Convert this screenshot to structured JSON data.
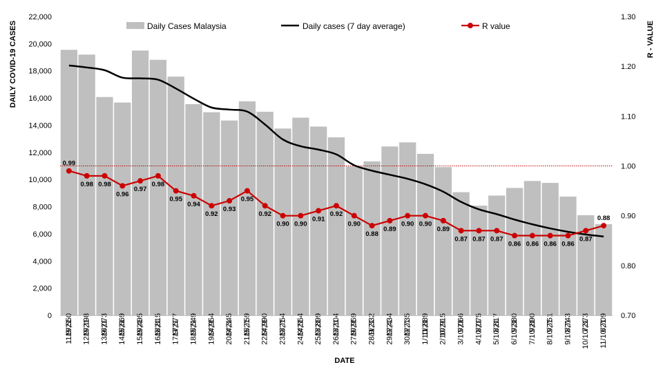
{
  "chart_data": {
    "type": "bar",
    "xlabel": "DATE",
    "ylabel": "DAILY COVID-19 CASES",
    "y2label": "R - VALUE",
    "ylim": [
      0,
      22000
    ],
    "y2lim": [
      0.7,
      1.3
    ],
    "yticks": [
      "0",
      "2,000",
      "4,000",
      "6,000",
      "8,000",
      "10,000",
      "12,000",
      "14,000",
      "16,000",
      "18,000",
      "20,000",
      "22,000"
    ],
    "y2ticks": [
      "0.70",
      "0.80",
      "0.90",
      "1.00",
      "1.10",
      "1.20",
      "1.30"
    ],
    "reference_line": 1.0,
    "legend_position": "top",
    "categories": [
      "11/9/21",
      "12/9/21",
      "13/9/21",
      "14/9/21",
      "15/9/21",
      "16/9/21",
      "17/9/21",
      "18/9/21",
      "19/9/21",
      "20/9/21",
      "21/9/21",
      "22/9/21",
      "23/9/21",
      "24/9/21",
      "25/9/21",
      "26/9/21",
      "27/9/21",
      "28/9/21",
      "29/9/21",
      "30/9/21",
      "1/10/21",
      "2/10/21",
      "3/10/21",
      "4/10/21",
      "5/10/21",
      "6/10/21",
      "7/10/21",
      "8/10/21",
      "9/10/21",
      "10/10/21",
      "11/10/21"
    ],
    "series": [
      {
        "name": "Daily Cases Malaysia",
        "type": "bar",
        "color": "#bfbfbf",
        "values": [
          19550,
          19198,
          16073,
          15669,
          19495,
          18815,
          17577,
          15549,
          14954,
          14345,
          15759,
          14990,
          13754,
          14554,
          13899,
          13104,
          10959,
          11332,
          12434,
          12735,
          11889,
          10915,
          9066,
          8075,
          8817,
          9380,
          9890,
          9751,
          8743,
          7373,
          6709
        ],
        "labels": [
          "19,550",
          "19,198",
          "16,073",
          "15,669",
          "19,495",
          "18,815",
          "17,577",
          "15,549",
          "14,954",
          "14,345",
          "15,759",
          "14,990",
          "13,754",
          "14,554",
          "13,899",
          "13,104",
          "10,959",
          "11,332",
          "12,434",
          "12,735",
          "11,889",
          "10,915",
          "9,066",
          "8,075",
          "8,817",
          "9,380",
          "9,890",
          "9,751",
          "8,743",
          "7,373",
          "6,709"
        ]
      },
      {
        "name": "Daily cases (7 day average)",
        "type": "line",
        "color": "#000000",
        "values": [
          18400,
          18250,
          18050,
          17500,
          17450,
          17350,
          16700,
          15950,
          15300,
          15150,
          15000,
          14050,
          12950,
          12450,
          12200,
          11850,
          11050,
          10650,
          10350,
          10050,
          9650,
          9100,
          8350,
          7800,
          7450,
          7050,
          6700,
          6400,
          6150,
          5950,
          5800
        ]
      },
      {
        "name": "R value",
        "type": "line",
        "axis": "y2",
        "color": "#cc0000",
        "values": [
          0.99,
          0.98,
          0.98,
          0.96,
          0.97,
          0.98,
          0.95,
          0.94,
          0.92,
          0.93,
          0.95,
          0.92,
          0.9,
          0.9,
          0.91,
          0.92,
          0.9,
          0.88,
          0.89,
          0.9,
          0.9,
          0.89,
          0.87,
          0.87,
          0.87,
          0.86,
          0.86,
          0.86,
          0.86,
          0.87,
          0.88
        ],
        "labels": [
          "0.99",
          "0.98",
          "0.98",
          "0.96",
          "0.97",
          "0.98",
          "0.95",
          "0.94",
          "0.92",
          "0.93",
          "0.95",
          "0.92",
          "0.90",
          "0.90",
          "0.91",
          "0.92",
          "0.90",
          "0.88",
          "0.89",
          "0.90",
          "0.90",
          "0.89",
          "0.87",
          "0.87",
          "0.87",
          "0.86",
          "0.86",
          "0.86",
          "0.86",
          "0.87",
          "0.88"
        ]
      }
    ]
  }
}
